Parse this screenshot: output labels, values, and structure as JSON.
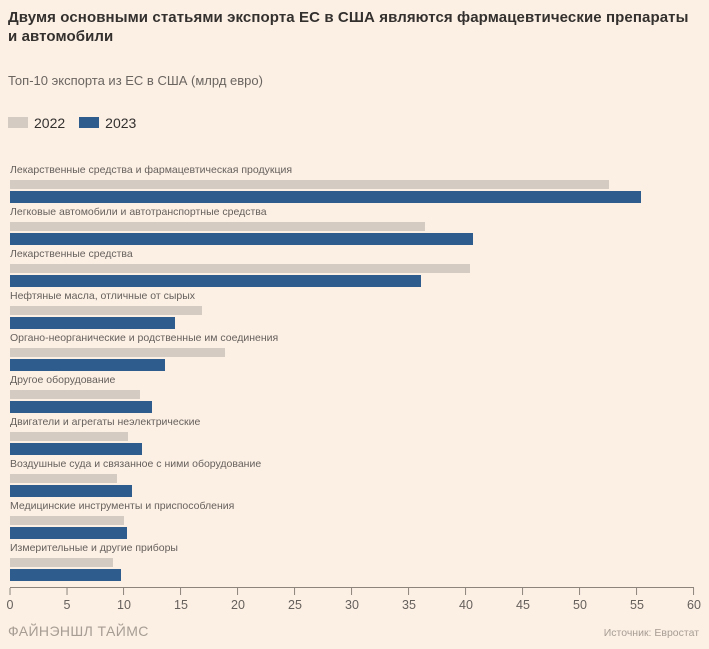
{
  "header": {
    "title": "Двумя основными статьями экспорта ЕС в США являются фармацевтические препараты и автомобили",
    "subtitle": "Топ-10 экспорта из ЕС в США (млрд евро)"
  },
  "legend": {
    "items": [
      {
        "label": "2022",
        "color": "#d4ccc2"
      },
      {
        "label": "2023",
        "color": "#2e5c8d"
      }
    ]
  },
  "chart_data": {
    "type": "bar",
    "orientation": "horizontal",
    "title": "Двумя основными статьями экспорта ЕС в США являются фармацевтические препараты и автомобили",
    "subtitle": "Топ-10 экспорта из ЕС в США (млрд евро)",
    "unit": "млрд евро",
    "categories": [
      "Лекарственные средства и фармацевтическая продукция",
      "Легковые автомобили и автотранспортные средства",
      "Лекарственные средства",
      "Нефтяные масла, отличные от сырых",
      "Органо-неорганические и родственные им соединения",
      "Другое оборудование",
      "Двигатели и агрегаты неэлектрические",
      "Воздушные суда и связанное с ними оборудование",
      "Медицинские инструменты и приспособления",
      "Измерительные и другие приборы"
    ],
    "series": [
      {
        "name": "2022",
        "color": "#d4ccc2",
        "values": [
          52.7,
          36.5,
          40.5,
          16.9,
          18.9,
          11.4,
          10.4,
          9.4,
          10.0,
          9.1
        ]
      },
      {
        "name": "2023",
        "color": "#2e5c8d",
        "values": [
          55.5,
          40.7,
          36.2,
          14.5,
          13.6,
          12.5,
          11.6,
          10.7,
          10.3,
          9.8
        ]
      }
    ],
    "xlim": [
      0,
      60
    ],
    "xticks": [
      0,
      5,
      10,
      15,
      20,
      25,
      30,
      35,
      40,
      45,
      50,
      55,
      60
    ],
    "legend_position": "top-left",
    "grid": false
  },
  "footer": {
    "brand": "ФАЙНЭНШЛ ТАЙМС",
    "source": "Источник: Евростат"
  },
  "colors": {
    "background": "#fcf0e5",
    "bar_2022": "#d4ccc2",
    "bar_2023": "#2e5c8d",
    "text_dark": "#33302e",
    "text_muted": "#66605c",
    "axis": "#8d857b",
    "footer_text": "#a79d92"
  }
}
